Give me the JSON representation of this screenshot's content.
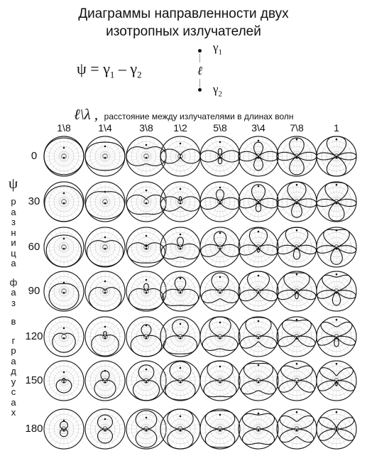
{
  "title": {
    "line1": "Диаграммы направленности двух",
    "line2": "изотропных излучателей"
  },
  "formula": {
    "lhs": "ψ =",
    "g1": "γ",
    "g1_sub": "1",
    "minus": "–",
    "g2": "γ",
    "g2_sub": "2"
  },
  "emitter_diagram": {
    "top_label": "γ",
    "top_sub": "1",
    "spacing_label": "ℓ",
    "bottom_label": "γ",
    "bottom_sub": "2"
  },
  "x_axis": {
    "symbol": "ℓ\\λ ,",
    "description": "расстояние между излучателями в длинах волн",
    "columns": [
      "1\\8",
      "1\\4",
      "3\\8",
      "1\\2",
      "5\\8",
      "3\\4",
      "7\\8",
      "1"
    ]
  },
  "y_axis": {
    "symbol": "ψ",
    "vertical_text": [
      "р",
      "а",
      "з",
      "н",
      "и",
      "ц",
      "а",
      "ф",
      "а",
      "з",
      "в",
      "г",
      "р",
      "а",
      "д",
      "у",
      "с",
      "а",
      "х"
    ],
    "rows": [
      "0",
      "30",
      "60",
      "90",
      "120",
      "150",
      "180"
    ]
  },
  "chart_data": {
    "type": "polar-grid",
    "columns_d_over_lambda": [
      0.125,
      0.25,
      0.375,
      0.5,
      0.625,
      0.75,
      0.875,
      1.0
    ],
    "rows_phase_deg": [
      0,
      30,
      60,
      90,
      120,
      150,
      180
    ],
    "pattern": "|cos(pi*d*sin(theta) + psi/2)|"
  }
}
